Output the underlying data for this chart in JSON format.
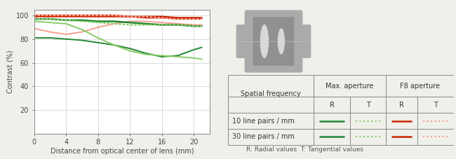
{
  "bg_color": "#f0f0eb",
  "chart_bg": "#ffffff",
  "xlabel": "Distance from optical center of lens (mm)",
  "ylabel": "Contrast (%)",
  "xticks": [
    0,
    4,
    8,
    12,
    16,
    20
  ],
  "yticks": [
    20,
    40,
    60,
    80,
    100
  ],
  "xlim": [
    0,
    22
  ],
  "ylim": [
    0,
    105
  ],
  "grid_color": "#cccccc",
  "lines": [
    {
      "x": [
        0,
        2,
        4,
        6,
        8,
        10,
        12,
        14,
        16,
        18,
        20,
        21
      ],
      "y": [
        99,
        99,
        99,
        99,
        99,
        99,
        99,
        98,
        98,
        97,
        97,
        97
      ],
      "color": "#cc2200",
      "lw": 1.4,
      "ls": "solid"
    },
    {
      "x": [
        0,
        2,
        4,
        6,
        8,
        10,
        12,
        14,
        16,
        18,
        20,
        21
      ],
      "y": [
        89,
        86,
        84,
        86,
        90,
        93,
        95,
        95,
        94,
        93,
        92,
        92
      ],
      "color": "#f4a090",
      "lw": 1.4,
      "ls": "solid"
    },
    {
      "x": [
        0,
        2,
        4,
        6,
        8,
        10,
        12,
        14,
        16,
        18,
        20,
        21
      ],
      "y": [
        100,
        100,
        100,
        100,
        100,
        100,
        99,
        99,
        99,
        98,
        98,
        98
      ],
      "color": "#cc2200",
      "lw": 1.8,
      "ls": "solid"
    },
    {
      "x": [
        0,
        2,
        4,
        6,
        8,
        10,
        12,
        14,
        16,
        18,
        20,
        21
      ],
      "y": [
        100,
        100,
        100,
        100,
        100,
        100,
        99,
        99,
        98,
        97,
        97,
        97
      ],
      "color": "#f4a090",
      "lw": 1.5,
      "ls": "dotted"
    },
    {
      "x": [
        0,
        2,
        4,
        6,
        8,
        10,
        12,
        14,
        16,
        18,
        20,
        21
      ],
      "y": [
        81,
        81,
        80,
        79,
        77,
        75,
        72,
        68,
        65,
        66,
        71,
        73
      ],
      "color": "#228833",
      "lw": 1.4,
      "ls": "solid"
    },
    {
      "x": [
        0,
        2,
        4,
        6,
        8,
        10,
        12,
        14,
        16,
        18,
        20,
        21
      ],
      "y": [
        95,
        94,
        93,
        88,
        81,
        75,
        70,
        67,
        66,
        65,
        64,
        63
      ],
      "color": "#88cc66",
      "lw": 1.4,
      "ls": "solid"
    },
    {
      "x": [
        0,
        2,
        4,
        6,
        8,
        10,
        12,
        14,
        16,
        18,
        20,
        21
      ],
      "y": [
        97,
        97,
        96,
        96,
        95,
        95,
        94,
        93,
        92,
        92,
        91,
        91
      ],
      "color": "#228833",
      "lw": 1.8,
      "ls": "solid"
    },
    {
      "x": [
        0,
        2,
        4,
        6,
        8,
        10,
        12,
        14,
        16,
        18,
        20,
        21
      ],
      "y": [
        97,
        97,
        96,
        95,
        94,
        93,
        92,
        92,
        92,
        92,
        91,
        91
      ],
      "color": "#88cc66",
      "lw": 1.5,
      "ls": "dotted"
    }
  ],
  "note_text": "R: Radial values  T: Tangential values",
  "axis_label_color": "#444444",
  "tick_label_color": "#444444",
  "table": {
    "col_header": [
      "Spatial frequency",
      "Max. aperture",
      "F8 aperture"
    ],
    "col_sub": [
      "",
      "R",
      "T",
      "R",
      "T"
    ],
    "row1": "10 line pairs / mm",
    "row2": "30 line pairs / mm",
    "line_samples": {
      "r1_maxR": {
        "color": "#228833",
        "ls": "solid"
      },
      "r1_maxT": {
        "color": "#88cc66",
        "ls": "dotted"
      },
      "r1_f8R": {
        "color": "#cc2200",
        "ls": "solid"
      },
      "r1_f8T": {
        "color": "#f4a090",
        "ls": "dotted"
      },
      "r2_maxR": {
        "color": "#228833",
        "ls": "solid"
      },
      "r2_maxT": {
        "color": "#88cc66",
        "ls": "dotted"
      },
      "r2_f8R": {
        "color": "#cc2200",
        "ls": "solid"
      },
      "r2_f8T": {
        "color": "#f4a090",
        "ls": "dotted"
      }
    }
  },
  "lens": {
    "body_color": "#aaaaaa",
    "inner_color": "#909090",
    "lens_color": "#d8d8d8",
    "axis_color": "#bbbbbb"
  }
}
